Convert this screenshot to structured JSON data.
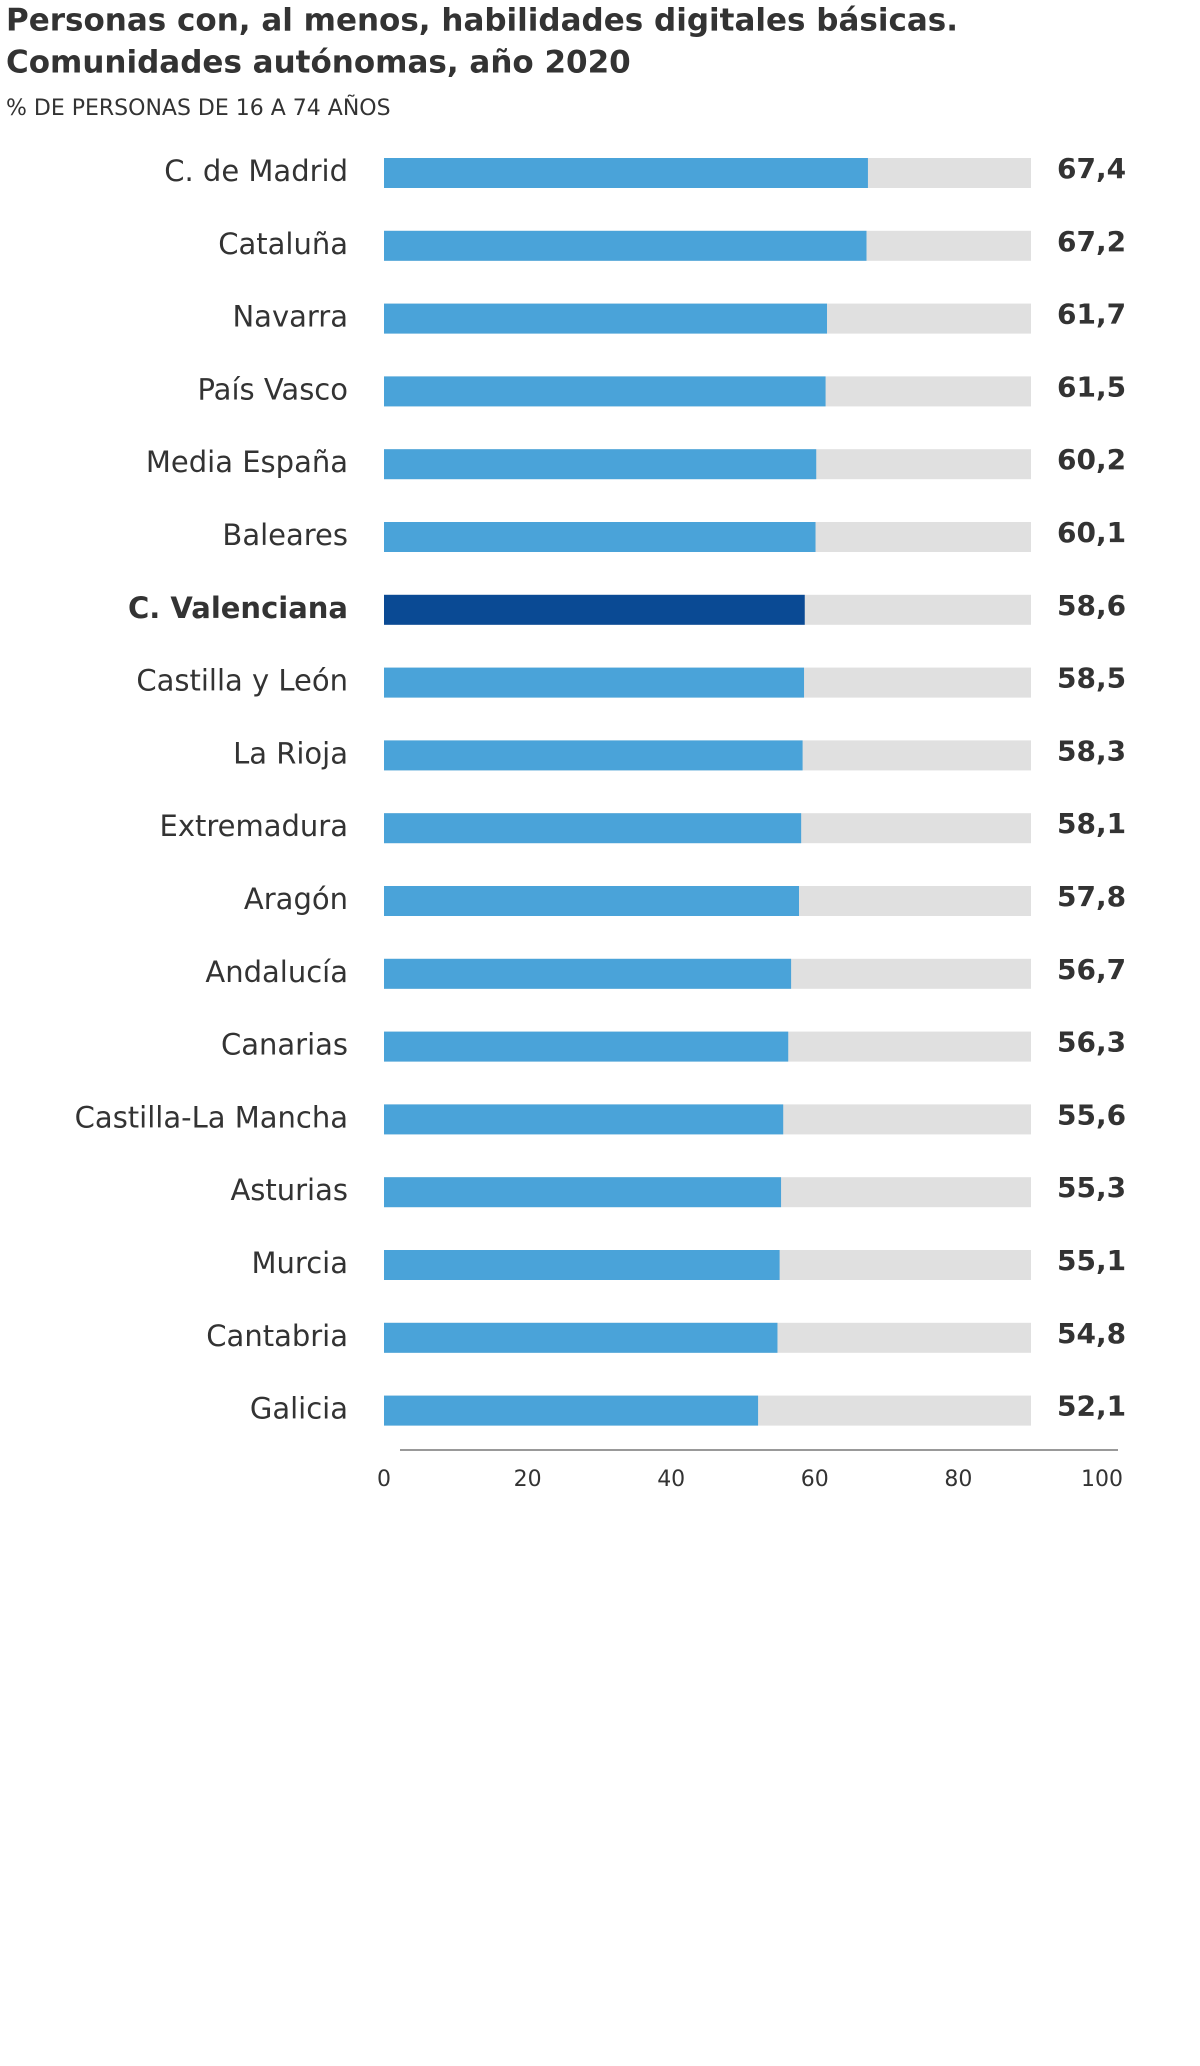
{
  "chart_data": {
    "type": "bar",
    "orientation": "horizontal",
    "title": "Personas con, al menos, habilidades digitales básicas.",
    "subtitle_line2": "Comunidades autónomas, año 2020",
    "axis_label": "% DE PERSONAS DE 16 A  74 AÑOS",
    "categories": [
      "C. de Madrid",
      "Cataluña",
      "Navarra",
      "País Vasco",
      "Media España",
      "Baleares",
      "C. Valenciana",
      "Castilla y León",
      "La Rioja",
      "Extremadura",
      "Aragón",
      "Andalucía",
      "Canarias",
      "Castilla-La Mancha",
      "Asturias",
      "Murcia",
      "Cantabria",
      "Galicia"
    ],
    "values": [
      67.4,
      67.2,
      61.7,
      61.5,
      60.2,
      60.1,
      58.6,
      58.5,
      58.3,
      58.1,
      57.8,
      56.7,
      56.3,
      55.6,
      55.3,
      55.1,
      54.8,
      52.1
    ],
    "value_labels": [
      "67,4",
      "67,2",
      "61,7",
      "61,5",
      "60,2",
      "60,1",
      "58,6",
      "58,5",
      "58,3",
      "58,1",
      "57,8",
      "56,7",
      "56,3",
      "55,6",
      "55,3",
      "55,1",
      "54,8",
      "52,1"
    ],
    "color": "#4aa3d9",
    "highlight_index": 6,
    "highlight_color": "#0a4a94",
    "track_color": "#e0e0e0",
    "xlim": [
      0,
      100
    ],
    "xticks": [
      0,
      20,
      40,
      60,
      80,
      100
    ]
  }
}
